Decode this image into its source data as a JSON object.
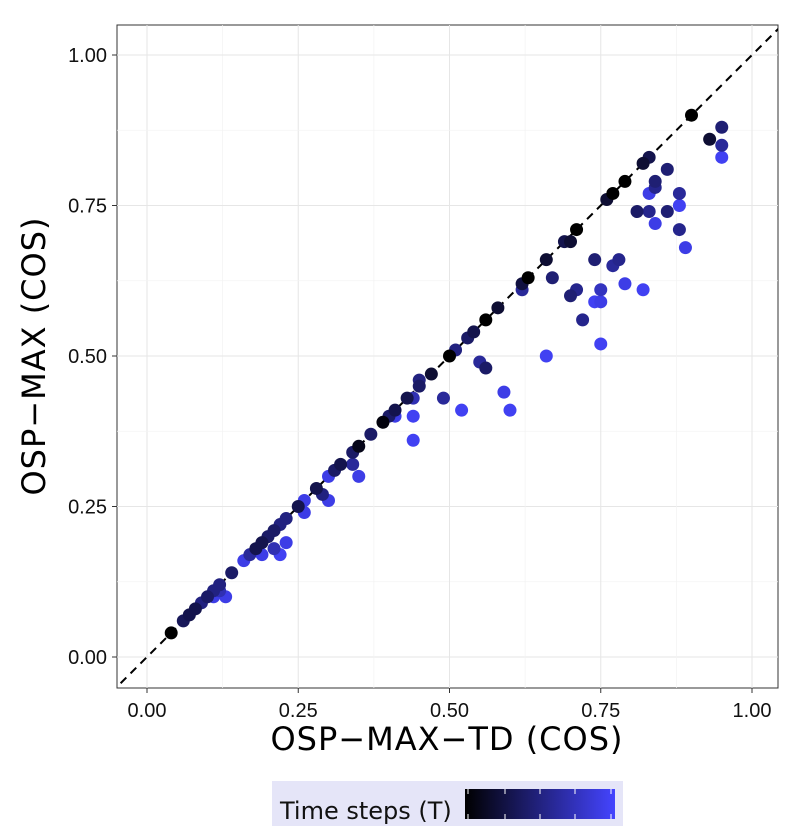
{
  "chart_data": {
    "type": "scatter",
    "title": "",
    "xlabel": "OSP−MAX−TD (COS)",
    "ylabel": "OSP−MAX (COS)",
    "xlim": [
      -0.05,
      1.04
    ],
    "ylim": [
      -0.05,
      1.05
    ],
    "xticks": [
      "0.00",
      "0.25",
      "0.50",
      "0.75",
      "1.00"
    ],
    "yticks": [
      "0.00",
      "0.25",
      "0.50",
      "0.75",
      "1.00"
    ],
    "xtick_values": [
      0,
      0.25,
      0.5,
      0.75,
      1
    ],
    "ytick_values": [
      0,
      0.25,
      0.5,
      0.75,
      1
    ],
    "grid": true,
    "reference_line": "y = x (dashed)",
    "legend": {
      "title": "Time steps (T)",
      "placement": "bottom",
      "type": "colorbar",
      "low_color": "#000000",
      "high_color": "#4444ff"
    },
    "points": [
      [
        0.04,
        0.04,
        0.0
      ],
      [
        0.06,
        0.06,
        0.35
      ],
      [
        0.07,
        0.07,
        0.3
      ],
      [
        0.08,
        0.08,
        0.3
      ],
      [
        0.09,
        0.09,
        0.5
      ],
      [
        0.1,
        0.1,
        0.4
      ],
      [
        0.11,
        0.11,
        0.5
      ],
      [
        0.12,
        0.12,
        0.5
      ],
      [
        0.11,
        0.1,
        0.9
      ],
      [
        0.13,
        0.1,
        0.9
      ],
      [
        0.12,
        0.11,
        0.7
      ],
      [
        0.14,
        0.14,
        0.4
      ],
      [
        0.16,
        0.16,
        0.9
      ],
      [
        0.17,
        0.17,
        0.6
      ],
      [
        0.18,
        0.18,
        0.3
      ],
      [
        0.19,
        0.19,
        0.3
      ],
      [
        0.2,
        0.2,
        0.4
      ],
      [
        0.21,
        0.21,
        0.4
      ],
      [
        0.22,
        0.22,
        0.5
      ],
      [
        0.23,
        0.23,
        0.5
      ],
      [
        0.19,
        0.17,
        0.9
      ],
      [
        0.21,
        0.18,
        0.7
      ],
      [
        0.22,
        0.17,
        0.95
      ],
      [
        0.23,
        0.19,
        0.9
      ],
      [
        0.25,
        0.25,
        0.3
      ],
      [
        0.26,
        0.26,
        0.9
      ],
      [
        0.26,
        0.24,
        0.9
      ],
      [
        0.28,
        0.28,
        0.3
      ],
      [
        0.29,
        0.27,
        0.5
      ],
      [
        0.3,
        0.26,
        0.9
      ],
      [
        0.3,
        0.3,
        0.9
      ],
      [
        0.31,
        0.31,
        0.4
      ],
      [
        0.32,
        0.32,
        0.3
      ],
      [
        0.34,
        0.34,
        0.4
      ],
      [
        0.34,
        0.32,
        0.6
      ],
      [
        0.35,
        0.35,
        0.1
      ],
      [
        0.35,
        0.3,
        0.9
      ],
      [
        0.37,
        0.37,
        0.4
      ],
      [
        0.39,
        0.39,
        0.05
      ],
      [
        0.4,
        0.4,
        0.4
      ],
      [
        0.41,
        0.41,
        0.3
      ],
      [
        0.41,
        0.4,
        0.9
      ],
      [
        0.43,
        0.43,
        0.3
      ],
      [
        0.44,
        0.43,
        0.7
      ],
      [
        0.44,
        0.4,
        0.95
      ],
      [
        0.44,
        0.36,
        0.95
      ],
      [
        0.45,
        0.46,
        0.5
      ],
      [
        0.45,
        0.45,
        0.4
      ],
      [
        0.47,
        0.47,
        0.2
      ],
      [
        0.49,
        0.43,
        0.6
      ],
      [
        0.5,
        0.5,
        0.0
      ],
      [
        0.51,
        0.51,
        0.5
      ],
      [
        0.52,
        0.41,
        0.95
      ],
      [
        0.53,
        0.53,
        0.4
      ],
      [
        0.54,
        0.54,
        0.3
      ],
      [
        0.55,
        0.49,
        0.6
      ],
      [
        0.56,
        0.56,
        0.0
      ],
      [
        0.56,
        0.48,
        0.4
      ],
      [
        0.58,
        0.58,
        0.2
      ],
      [
        0.59,
        0.44,
        0.9
      ],
      [
        0.6,
        0.41,
        0.95
      ],
      [
        0.62,
        0.61,
        0.6
      ],
      [
        0.62,
        0.62,
        0.25
      ],
      [
        0.63,
        0.63,
        0.0
      ],
      [
        0.66,
        0.66,
        0.2
      ],
      [
        0.66,
        0.5,
        0.95
      ],
      [
        0.67,
        0.63,
        0.45
      ],
      [
        0.69,
        0.69,
        0.3
      ],
      [
        0.7,
        0.69,
        0.2
      ],
      [
        0.7,
        0.6,
        0.45
      ],
      [
        0.71,
        0.61,
        0.55
      ],
      [
        0.71,
        0.71,
        0.0
      ],
      [
        0.72,
        0.56,
        0.55
      ],
      [
        0.74,
        0.66,
        0.45
      ],
      [
        0.74,
        0.59,
        0.95
      ],
      [
        0.75,
        0.61,
        0.75
      ],
      [
        0.75,
        0.59,
        0.9
      ],
      [
        0.75,
        0.52,
        0.95
      ],
      [
        0.76,
        0.76,
        0.2
      ],
      [
        0.77,
        0.77,
        0.0
      ],
      [
        0.77,
        0.65,
        0.6
      ],
      [
        0.78,
        0.66,
        0.55
      ],
      [
        0.79,
        0.62,
        0.9
      ],
      [
        0.79,
        0.79,
        0.0
      ],
      [
        0.81,
        0.74,
        0.4
      ],
      [
        0.82,
        0.82,
        0.2
      ],
      [
        0.82,
        0.61,
        0.95
      ],
      [
        0.83,
        0.83,
        0.3
      ],
      [
        0.83,
        0.77,
        0.9
      ],
      [
        0.83,
        0.74,
        0.55
      ],
      [
        0.84,
        0.79,
        0.45
      ],
      [
        0.84,
        0.78,
        0.55
      ],
      [
        0.84,
        0.72,
        0.9
      ],
      [
        0.86,
        0.81,
        0.45
      ],
      [
        0.86,
        0.74,
        0.45
      ],
      [
        0.88,
        0.77,
        0.6
      ],
      [
        0.88,
        0.75,
        0.95
      ],
      [
        0.88,
        0.71,
        0.55
      ],
      [
        0.89,
        0.68,
        0.9
      ],
      [
        0.9,
        0.9,
        0.0
      ],
      [
        0.93,
        0.86,
        0.2
      ],
      [
        0.95,
        0.88,
        0.45
      ],
      [
        0.95,
        0.85,
        0.6
      ],
      [
        0.95,
        0.83,
        0.95
      ]
    ]
  }
}
